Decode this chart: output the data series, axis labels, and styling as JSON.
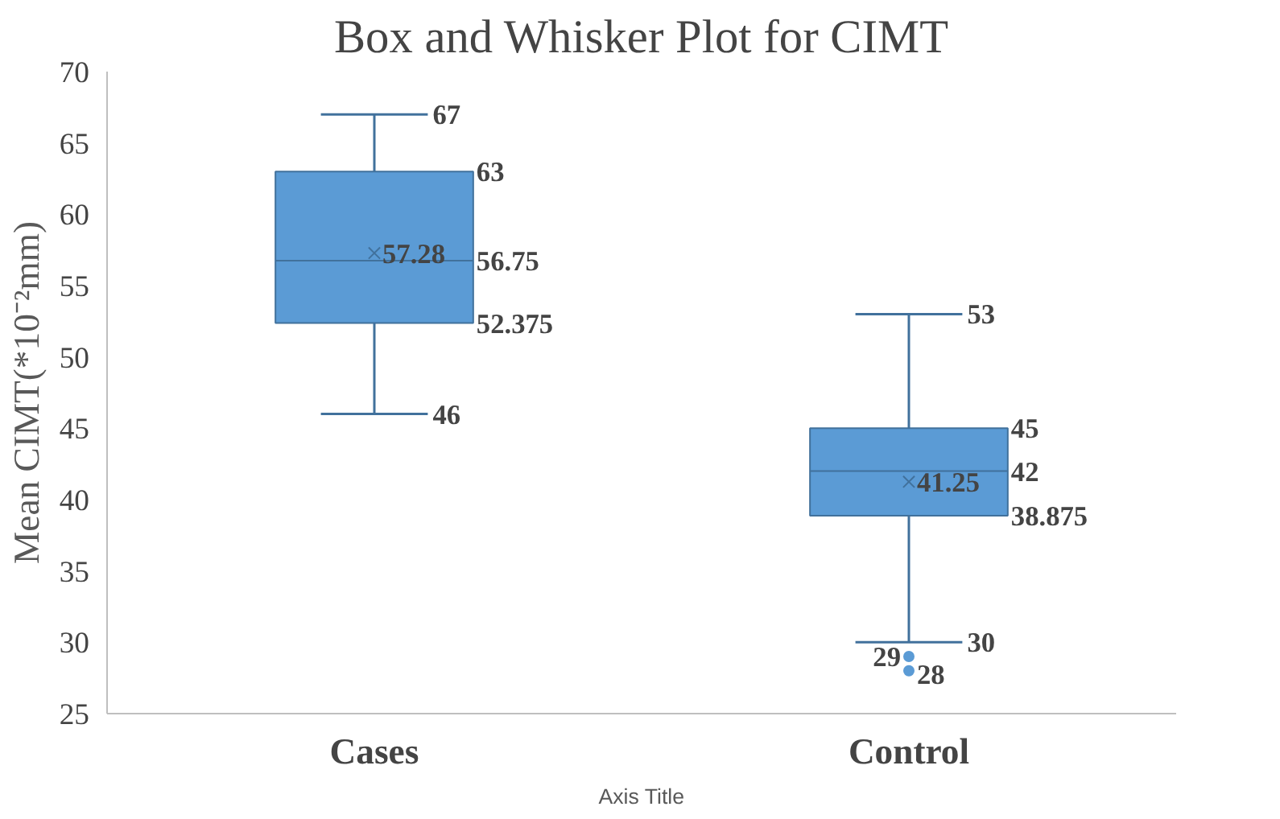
{
  "chart_data": {
    "type": "box",
    "title": "Box and Whisker Plot for CIMT",
    "xlabel": "Axis Title",
    "ylabel": "Mean CIMT(*10⁻²mm)",
    "categories": [
      "Cases",
      "Control"
    ],
    "boxes": [
      {
        "low": 46,
        "q1": 52.375,
        "median": 56.75,
        "q3": 63,
        "high": 67,
        "mean": 57.28
      },
      {
        "low": 30,
        "q1": 38.875,
        "median": 42,
        "q3": 45,
        "high": 53,
        "mean": 41.25,
        "outliers": [
          29,
          28
        ]
      }
    ],
    "color": "#5b9bd5",
    "ylim": [
      25,
      70
    ],
    "yticks": [
      25,
      30,
      35,
      40,
      45,
      50,
      55,
      60,
      65,
      70
    ],
    "grid": false,
    "annotations": [
      "67",
      "63",
      "57.28",
      "56.75",
      "52.375",
      "46",
      "53",
      "45",
      "41.25",
      "42",
      "38.875",
      "30",
      "29",
      "28"
    ]
  }
}
